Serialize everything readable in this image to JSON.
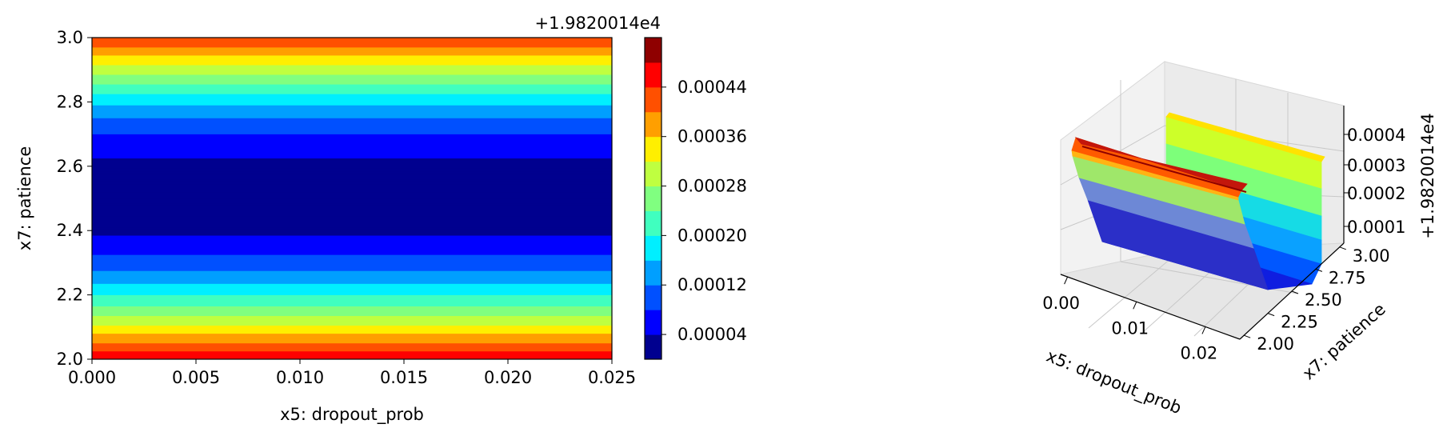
{
  "figure": {
    "contour": {
      "offset_label": "+1.9820014e4",
      "xlabel": "x5: dropout_prob",
      "ylabel": "x7: patience",
      "xticks": [
        "0.000",
        "0.005",
        "0.010",
        "0.015",
        "0.020",
        "0.025"
      ],
      "yticks": [
        "2.0",
        "2.2",
        "2.4",
        "2.6",
        "2.8",
        "3.0"
      ],
      "cbar_ticks": [
        "0.00004",
        "0.00012",
        "0.00020",
        "0.00028",
        "0.00036",
        "0.00044"
      ]
    },
    "surface": {
      "offset_label": "+1.9820014e4",
      "xlabel": "x5: dropout_prob",
      "ylabel": "x7: patience",
      "xticks": [
        "0.00",
        "0.01",
        "0.02"
      ],
      "yticks": [
        "2.00",
        "2.25",
        "2.50",
        "2.75",
        "3.00"
      ],
      "zticks": [
        "0.0001",
        "0.0002",
        "0.0003",
        "0.0004"
      ]
    }
  },
  "chart_data": [
    {
      "type": "heatmap",
      "subtype": "filled-contour",
      "colormap": "jet",
      "x_label": "x5: dropout_prob",
      "y_label": "x7: patience",
      "value_offset": 19820.014,
      "xlim": [
        0,
        0.025
      ],
      "ylim": [
        2.0,
        3.0
      ],
      "x": [
        0.0,
        0.025
      ],
      "y": [
        2.0,
        2.05,
        2.1,
        2.15,
        2.2,
        2.25,
        2.3,
        2.35,
        2.4,
        2.45,
        2.5,
        2.55,
        2.6,
        2.65,
        2.7,
        2.75,
        2.8,
        2.85,
        2.9,
        2.95,
        3.0
      ],
      "values_above_offset_per_y": [
        0.00048,
        0.0004,
        0.00033,
        0.00026,
        0.0002,
        0.00014,
        0.0001,
        6e-05,
        3e-05,
        2e-05,
        2e-05,
        2e-05,
        3e-05,
        5e-05,
        8e-05,
        0.00012,
        0.00017,
        0.00023,
        0.0003,
        0.00037,
        0.00044
      ],
      "levels": [
        4e-05,
        8e-05,
        0.00012,
        0.00016,
        0.0002,
        0.00024,
        0.00028,
        0.00032,
        0.00036,
        0.0004,
        0.00044,
        0.00048
      ],
      "level_colors": [
        "#00008f",
        "#0000ff",
        "#0050ff",
        "#009fff",
        "#00efff",
        "#40ffbf",
        "#80ff80",
        "#bfff40",
        "#ffef00",
        "#ff9f00",
        "#ff5000",
        "#ff0000",
        "#8f0000"
      ],
      "colorbar_ticks": [
        4e-05,
        0.00012,
        0.0002,
        0.00028,
        0.00036,
        0.00044
      ],
      "colorbar_offset_label": "+1.9820014e4"
    },
    {
      "type": "surface3d",
      "colormap": "jet",
      "x_label": "x5: dropout_prob",
      "y_label": "x7: patience",
      "z_offset_label": "+1.9820014e4",
      "xlim": [
        0,
        0.025
      ],
      "ylim": [
        2.0,
        3.0
      ],
      "zlim": [
        4e-05,
        0.00048
      ],
      "xticks": [
        0.0,
        0.01,
        0.02
      ],
      "yticks": [
        2.0,
        2.25,
        2.5,
        2.75,
        3.0
      ],
      "zticks": [
        0.0001,
        0.0002,
        0.0003,
        0.0004
      ],
      "surface_shape": "valley along x7 with minimum near 2.5, constant along x5"
    }
  ]
}
